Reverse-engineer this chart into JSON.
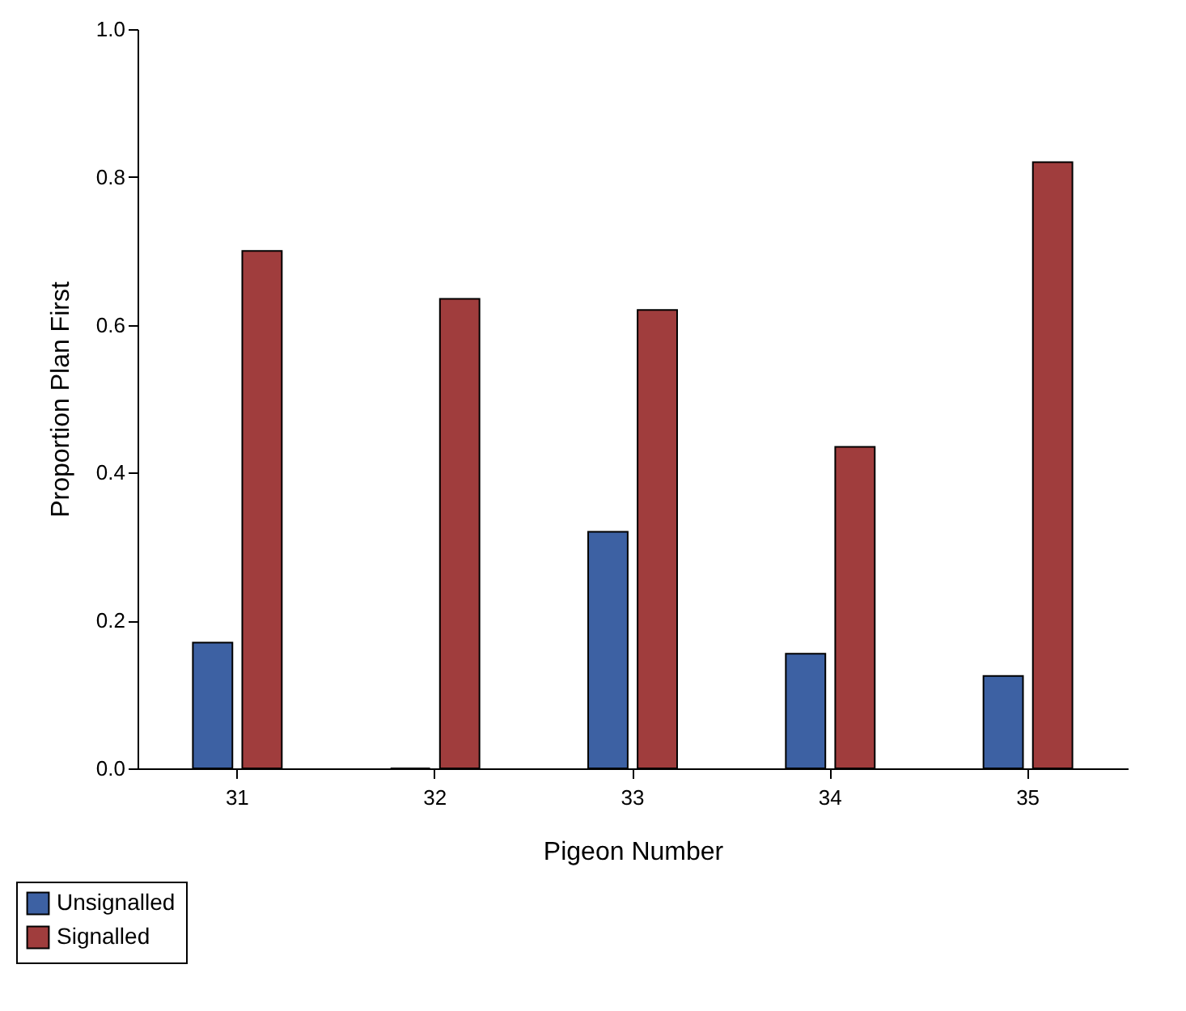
{
  "chart_data": {
    "type": "bar",
    "xlabel": "Pigeon Number",
    "ylabel": "Proportion Plan First",
    "categories": [
      "31",
      "32",
      "33",
      "34",
      "35"
    ],
    "series": [
      {
        "name": "Unsignalled",
        "color": "#3d61a3",
        "values": [
          0.17,
          0,
          0.32,
          0.155,
          0.125
        ]
      },
      {
        "name": "Signalled",
        "color": "#a03d3d",
        "values": [
          0.7,
          0.635,
          0.62,
          0.435,
          0.82
        ]
      }
    ],
    "ylim": [
      0,
      1
    ],
    "yticks": [
      {
        "value": 0,
        "label": "0.0"
      },
      {
        "value": 0.2,
        "label": "0.2"
      },
      {
        "value": 0.4,
        "label": "0.4"
      },
      {
        "value": 0.6,
        "label": "0.6"
      },
      {
        "value": 0.8,
        "label": "0.8"
      },
      {
        "value": 1,
        "label": "1.0"
      }
    ],
    "grid": false,
    "legend": "bottom left"
  }
}
